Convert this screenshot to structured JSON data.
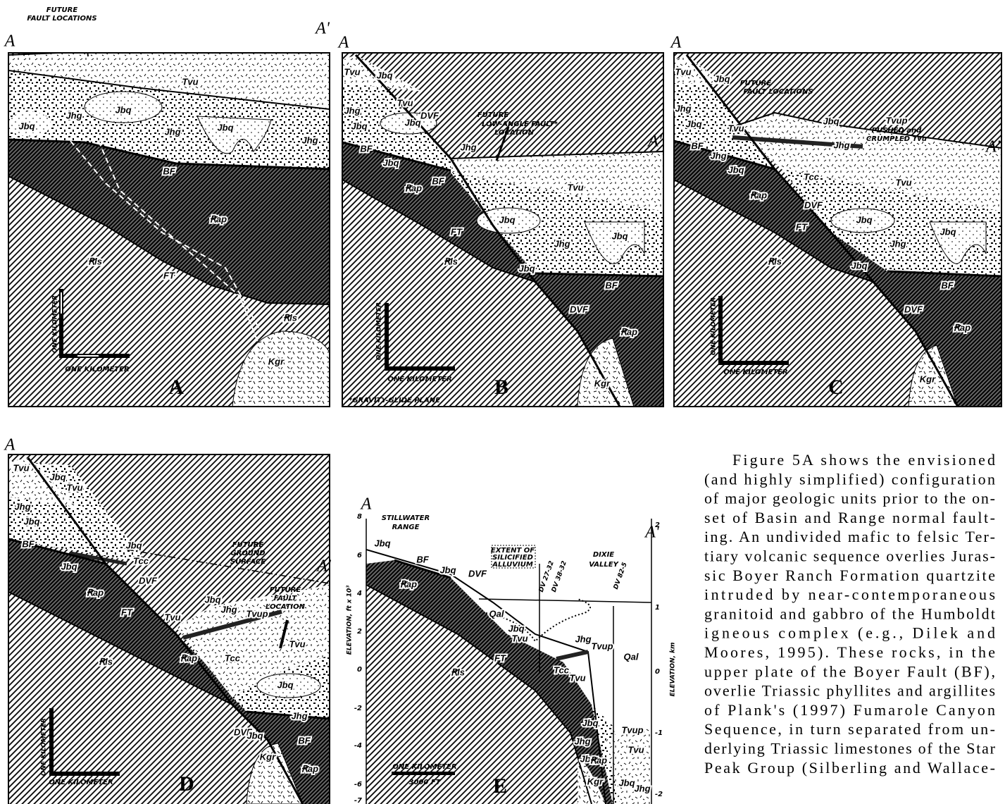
{
  "panels": [
    {
      "texts": [
        "FUTURE",
        "FAULT LOCATIONS",
        "A",
        "A'",
        "Tvu",
        "Jbq",
        "Jhg",
        "Jbq",
        "Jhg",
        "Jbq",
        "Jhg",
        "BF",
        "Ꞧap",
        "Ꞧls",
        "FT",
        "Ꞧls",
        "Kgr",
        "ONE KILOMETER",
        "ONE KILOMETER",
        "A"
      ]
    },
    {
      "texts": [
        "A",
        "A'",
        "FUTURE",
        "LOW-ANGLE FAULT*",
        "LOCATION",
        "Tvu",
        "Jbq",
        "Tvu",
        "Jhg",
        "Jbq",
        "Jbq",
        "DVF",
        "Jhg",
        "BF",
        "Jbq",
        "Ꞧap",
        "BF",
        "Tvu",
        "Jbq",
        "Jhg",
        "Jbq",
        "FT",
        "Ꞧls",
        "Jbq",
        "BF",
        "DVF",
        "Ꞧap",
        "Kgr",
        "ONE KILOMETER",
        "ONE KILOMETER",
        "*GRAVITY-GLIDE PLANE",
        "B"
      ]
    },
    {
      "texts": [
        "A",
        "A'",
        "FUTURE",
        "FAULT LOCATIONS",
        "Tvup",
        "PUSHED and",
        "CRUMPLED Tvu",
        "Tvu",
        "Jbq",
        "Jhg",
        "Jbq",
        "Tvu",
        "Jbq",
        "Jhg",
        "BF",
        "Jhg",
        "Jbq",
        "Tcc",
        "Tvu",
        "Ꞧap",
        "DVF",
        "Jbq",
        "Jbq",
        "Jhg",
        "FT",
        "Ꞧls",
        "Jbq",
        "BF",
        "DVF",
        "Ꞧap",
        "Kgr",
        "ONE KILOMETER",
        "ONE KILOMETER",
        "C"
      ]
    },
    {
      "texts": [
        "A",
        "A'",
        "FUTURE",
        "GROUND",
        "SURFACE",
        "FUTURE",
        "FAULT",
        "LOCATION",
        "Tvu",
        "Jbq",
        "Tvu",
        "Jhg",
        "Jbq",
        "Jbq",
        "BF",
        "Jbq",
        "Tcc",
        "Ꞧap",
        "DVF",
        "Jbq",
        "Jhg",
        "Tvup",
        "Tvu",
        "FT",
        "Tvu",
        "Ꞧap",
        "Tcc",
        "Ꞧls",
        "Jbq",
        "DVF",
        "Jhg",
        "Jbq",
        "BF",
        "Ꞧap",
        "Kgr",
        "ONE KILOMETER",
        "ONE KILOMETER",
        "D"
      ]
    },
    {
      "texts": [
        "A",
        "STILLWATER",
        "RANGE",
        "A'",
        "DIXIE",
        "VALLEY",
        "EXTENT OF",
        "SILICIFIED",
        "ALLUVIUM",
        "DV 27-32",
        "DV 38-32",
        "DV 82-5",
        "Jbq",
        "BF",
        "Ꞧap",
        "Jbq",
        "DVF",
        "Qal",
        "Jbq",
        "Tvu",
        "Jhg",
        "Tvup",
        "Qal",
        "Tcc",
        "Tvu",
        "FT",
        "Ꞧls",
        "Jbq",
        "Tvup",
        "Jhg",
        "Jbq",
        "Tvu",
        "Ꞧap",
        "Kgr",
        "Jbq",
        "Jhg",
        "ELEVATION, ft x 10³",
        8,
        6,
        4,
        2,
        0,
        -2,
        -4,
        -6,
        -7,
        "ELEVATION, km",
        2,
        1,
        0,
        -1,
        -2,
        "ONE KILOMETER",
        "3000 FT",
        "E"
      ]
    }
  ],
  "paragraph": {
    "lines": [
      "Figure 5A shows the envisioned",
      "(and highly simplified) configuration",
      "of major geologic units prior to the on-",
      "set of Basin and Range normal fault-",
      "ing. An undivided mafic to felsic Ter-",
      "tiary volcanic sequence overlies Juras-",
      "sic Boyer Ranch Formation quartzite",
      "intruded by near-contemporaneous",
      "granitoid and gabbro of the Humboldt",
      "igneous complex (e.g., Dilek and",
      "Moores, 1995). These rocks, in the",
      "upper plate of the Boyer Fault (BF),",
      "overlie Triassic phyllites and argillites",
      "of Plank's (1997) Fumarole Canyon",
      "Sequence, in turn separated from un-",
      "derlying Triassic limestones of the Star",
      "Peak Group (Silberling and Wallace-"
    ]
  }
}
